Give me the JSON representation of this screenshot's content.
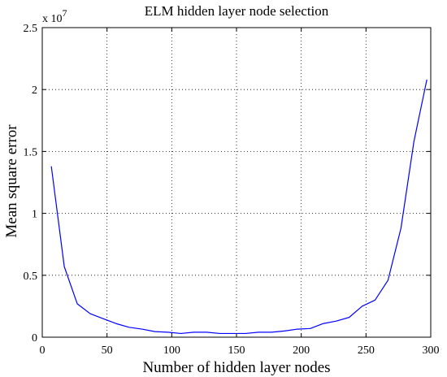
{
  "chart_data": {
    "type": "line",
    "title": "ELM hidden layer node selection",
    "xlabel": "Number of hidden layer nodes",
    "ylabel": "Mean square error",
    "y_multiplier_label": "x 10",
    "y_multiplier_exponent": "7",
    "xlim": [
      0,
      300
    ],
    "ylim": [
      0,
      2.5
    ],
    "xticks": [
      0,
      50,
      100,
      150,
      200,
      250,
      300
    ],
    "yticks": [
      0,
      0.5,
      1,
      1.5,
      2,
      2.5
    ],
    "xtick_labels": [
      "0",
      "50",
      "100",
      "150",
      "200",
      "250",
      "300"
    ],
    "ytick_labels": [
      "0",
      "0.5",
      "1",
      "1.5",
      "2",
      "2.5"
    ],
    "grid": true,
    "series": [
      {
        "color": "#0000ff",
        "x": [
          7,
          17,
          27,
          37,
          47,
          57,
          67,
          77,
          87,
          97,
          107,
          117,
          127,
          137,
          147,
          157,
          167,
          177,
          187,
          197,
          207,
          217,
          227,
          237,
          247,
          257,
          267,
          277,
          287,
          297
        ],
        "y": [
          1.38,
          0.57,
          0.27,
          0.19,
          0.15,
          0.11,
          0.08,
          0.065,
          0.045,
          0.04,
          0.03,
          0.04,
          0.04,
          0.03,
          0.03,
          0.03,
          0.04,
          0.04,
          0.05,
          0.065,
          0.07,
          0.11,
          0.13,
          0.16,
          0.25,
          0.3,
          0.46,
          0.88,
          1.58,
          2.08
        ]
      }
    ]
  }
}
